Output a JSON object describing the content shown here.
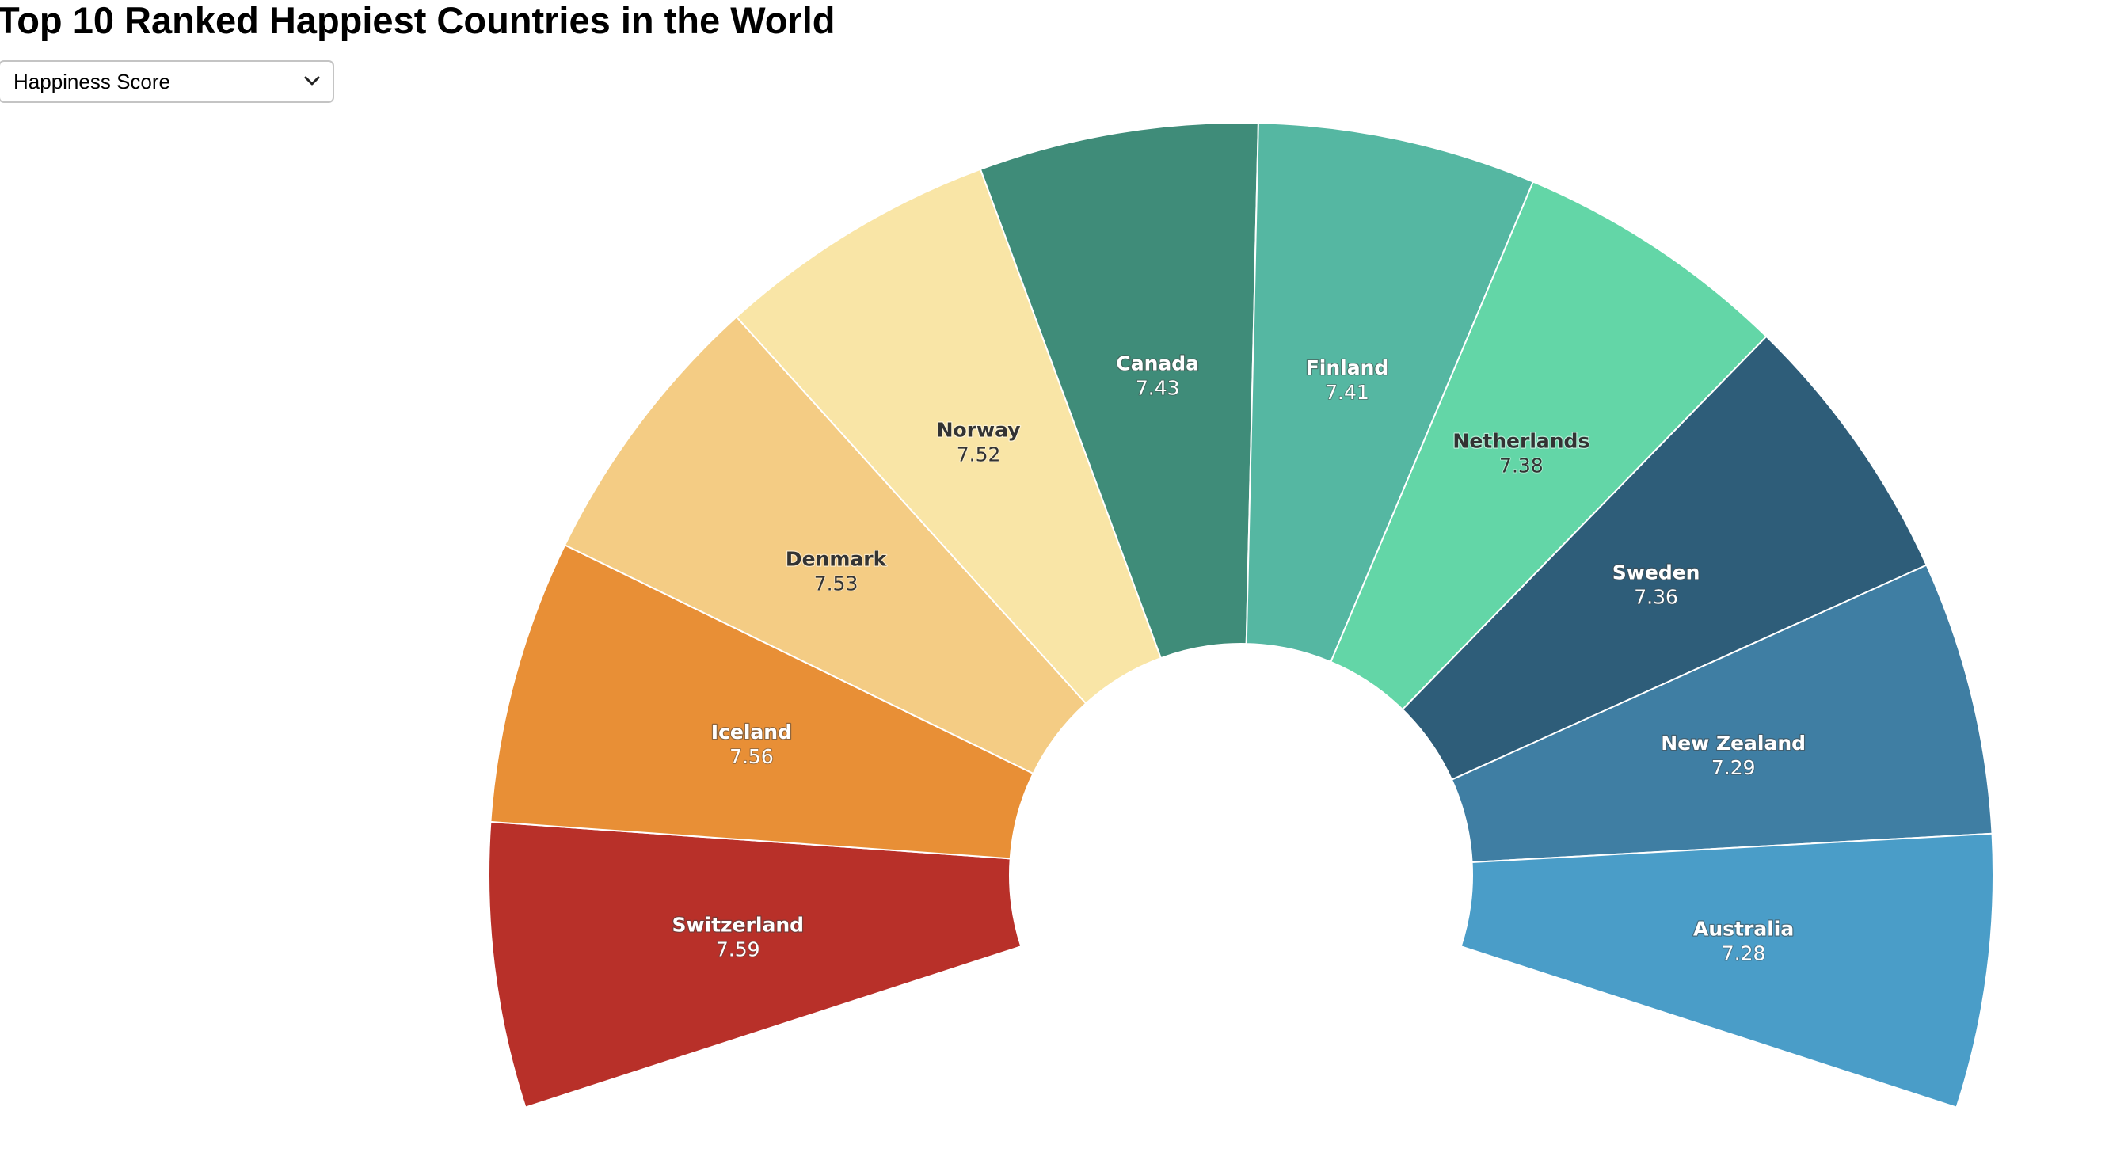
{
  "title": "Top 10 Ranked Happiest Countries in the World",
  "metric_select": {
    "selected": "Happiness Score",
    "icon": "chevron-down-icon"
  },
  "chart_data": {
    "type": "pie",
    "variant": "half-donut",
    "title": "Top 10 Ranked Happiest Countries in the World",
    "metric": "Happiness Score",
    "categories": [
      "Switzerland",
      "Iceland",
      "Denmark",
      "Norway",
      "Canada",
      "Finland",
      "Netherlands",
      "Sweden",
      "New Zealand",
      "Australia"
    ],
    "values": [
      7.59,
      7.56,
      7.53,
      7.52,
      7.43,
      7.41,
      7.38,
      7.36,
      7.29,
      7.28
    ],
    "value_labels": [
      "7.59",
      "7.56",
      "7.53",
      "7.52",
      "7.43",
      "7.41",
      "7.38",
      "7.36",
      "7.29",
      "7.28"
    ],
    "colors": [
      "#b83029",
      "#e88f36",
      "#f4cc84",
      "#f9e5a6",
      "#3f8c79",
      "#55b7a2",
      "#63d6a7",
      "#2e5d79",
      "#3f7ea3",
      "#4a9dc8"
    ],
    "label_colors": [
      "#ffffff",
      "#ffffff",
      "#333333",
      "#333333",
      "#ffffff",
      "#ffffff",
      "#333333",
      "#ffffff",
      "#ffffff",
      "#ffffff"
    ],
    "legend": "none"
  }
}
